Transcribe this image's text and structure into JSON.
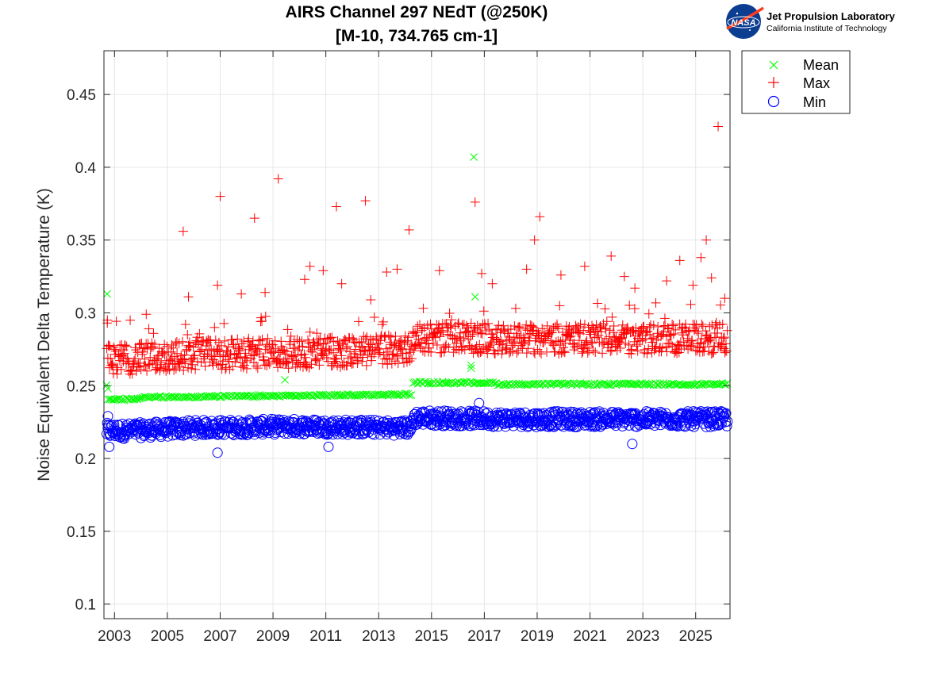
{
  "logo": {
    "badge_text": "NASA",
    "org_name": "Jet Propulsion Laboratory",
    "org_sub": "California Institute of Technology"
  },
  "chart_data": {
    "type": "scatter",
    "title": "AIRS Channel 297 NEdT (@250K)",
    "subtitle": "[M-10, 734.765 cm-1]",
    "xlabel": "",
    "ylabel": "Noise Equivalent Delta Temperature (K)",
    "xlim": [
      2002.6,
      2026.3
    ],
    "ylim": [
      0.09,
      0.48
    ],
    "x_ticks": [
      "2003",
      "2005",
      "2007",
      "2009",
      "2011",
      "2013",
      "2015",
      "2017",
      "2019",
      "2021",
      "2023",
      "2025"
    ],
    "y_ticks": [
      "0.1",
      "0.15",
      "0.2",
      "0.25",
      "0.3",
      "0.35",
      "0.4",
      "0.45"
    ],
    "grid": true,
    "legend_position": "outside-top-right",
    "series": [
      {
        "name": "Mean",
        "marker": "x",
        "color": "#00ff00",
        "trend": [
          [
            2002.7,
            0.24
          ],
          [
            2003.9,
            0.241
          ],
          [
            2004.1,
            0.242
          ],
          [
            2014.25,
            0.244
          ],
          [
            2014.3,
            0.252
          ],
          [
            2017.3,
            0.252
          ],
          [
            2017.5,
            0.251
          ],
          [
            2026.2,
            0.251
          ]
        ],
        "outliers": [
          [
            2002.72,
            0.313
          ],
          [
            2002.75,
            0.248
          ],
          [
            2009.45,
            0.254
          ],
          [
            2016.5,
            0.262
          ],
          [
            2016.5,
            0.264
          ],
          [
            2016.6,
            0.407
          ],
          [
            2016.65,
            0.311
          ]
        ]
      },
      {
        "name": "Max",
        "marker": "+",
        "color": "#ff0000",
        "trend": [
          [
            2002.7,
            0.265
          ],
          [
            2003.5,
            0.265
          ],
          [
            2006,
            0.268
          ],
          [
            2009,
            0.269
          ],
          [
            2012,
            0.27
          ],
          [
            2014.25,
            0.272
          ],
          [
            2014.3,
            0.28
          ],
          [
            2018,
            0.279
          ],
          [
            2022,
            0.279
          ],
          [
            2026.2,
            0.279
          ]
        ],
        "outliers": [
          [
            2002.73,
            0.295
          ],
          [
            2004.2,
            0.299
          ],
          [
            2005.6,
            0.356
          ],
          [
            2005.8,
            0.311
          ],
          [
            2006.9,
            0.319
          ],
          [
            2007.0,
            0.38
          ],
          [
            2007.8,
            0.313
          ],
          [
            2008.3,
            0.365
          ],
          [
            2008.7,
            0.314
          ],
          [
            2009.2,
            0.392
          ],
          [
            2010.2,
            0.323
          ],
          [
            2010.4,
            0.332
          ],
          [
            2010.9,
            0.329
          ],
          [
            2011.4,
            0.373
          ],
          [
            2011.6,
            0.32
          ],
          [
            2012.5,
            0.377
          ],
          [
            2012.7,
            0.309
          ],
          [
            2013.3,
            0.328
          ],
          [
            2013.7,
            0.33
          ],
          [
            2014.15,
            0.357
          ],
          [
            2015.3,
            0.329
          ],
          [
            2016.65,
            0.376
          ],
          [
            2016.9,
            0.327
          ],
          [
            2017.3,
            0.32
          ],
          [
            2018.6,
            0.33
          ],
          [
            2018.9,
            0.35
          ],
          [
            2019.1,
            0.366
          ],
          [
            2019.9,
            0.326
          ],
          [
            2020.8,
            0.332
          ],
          [
            2021.8,
            0.339
          ],
          [
            2022.3,
            0.325
          ],
          [
            2022.7,
            0.317
          ],
          [
            2023.9,
            0.322
          ],
          [
            2024.4,
            0.336
          ],
          [
            2024.9,
            0.319
          ],
          [
            2025.2,
            0.338
          ],
          [
            2025.4,
            0.35
          ],
          [
            2025.6,
            0.324
          ],
          [
            2025.85,
            0.428
          ],
          [
            2026.1,
            0.31
          ]
        ]
      },
      {
        "name": "Min",
        "marker": "o",
        "color": "#0000ff",
        "trend": [
          [
            2002.7,
            0.219
          ],
          [
            2003.5,
            0.219
          ],
          [
            2006,
            0.221
          ],
          [
            2010,
            0.222
          ],
          [
            2014.25,
            0.221
          ],
          [
            2014.3,
            0.228
          ],
          [
            2018,
            0.227
          ],
          [
            2022,
            0.227
          ],
          [
            2026.2,
            0.227
          ]
        ],
        "outliers": [
          [
            2002.75,
            0.229
          ],
          [
            2002.8,
            0.208
          ],
          [
            2006.9,
            0.204
          ],
          [
            2011.1,
            0.208
          ],
          [
            2016.8,
            0.238
          ],
          [
            2022.6,
            0.21
          ]
        ]
      }
    ]
  }
}
